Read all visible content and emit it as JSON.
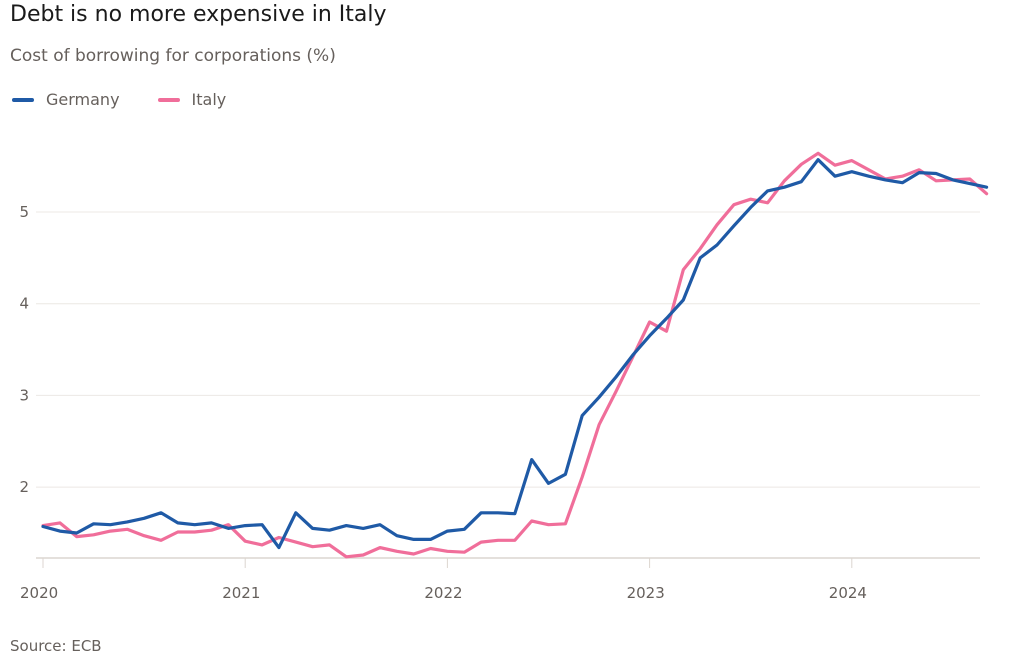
{
  "chart_data": {
    "type": "line",
    "title": "Debt is no more expensive in Italy",
    "subtitle": "Cost of borrowing for corporations (%)",
    "source": "Source: ECB",
    "xlabel": "",
    "ylabel": "",
    "x_start": "2020-01",
    "x_frequency": "monthly",
    "x_ticks": [
      "2020",
      "2021",
      "2022",
      "2023",
      "2024"
    ],
    "y_ticks": [
      "2",
      "3",
      "4",
      "5"
    ],
    "y_tick_values": [
      2,
      3,
      4,
      5
    ],
    "ylim": [
      1.22,
      5.8
    ],
    "xlim_months": [
      0,
      55
    ],
    "grid": true,
    "legend_position": "top-left",
    "series": [
      {
        "name": "Germany",
        "color": "#1f5aa6",
        "values": [
          1.57,
          1.52,
          1.5,
          1.6,
          1.59,
          1.62,
          1.66,
          1.72,
          1.61,
          1.59,
          1.61,
          1.55,
          1.58,
          1.59,
          1.34,
          1.72,
          1.55,
          1.53,
          1.58,
          1.55,
          1.59,
          1.47,
          1.43,
          1.43,
          1.52,
          1.54,
          1.72,
          1.72,
          1.71,
          2.3,
          2.04,
          2.14,
          2.78,
          2.98,
          3.2,
          3.44,
          3.65,
          3.84,
          4.04,
          4.5,
          4.64,
          4.85,
          5.05,
          5.23,
          5.27,
          5.33,
          5.57,
          5.39,
          5.44,
          5.39,
          5.35,
          5.32,
          5.43,
          5.42,
          5.35,
          5.31,
          5.27
        ]
      },
      {
        "name": "Italy",
        "color": "#f06e9a",
        "values": [
          1.58,
          1.61,
          1.46,
          1.48,
          1.52,
          1.54,
          1.47,
          1.42,
          1.51,
          1.51,
          1.53,
          1.59,
          1.41,
          1.37,
          1.45,
          1.4,
          1.35,
          1.37,
          1.24,
          1.26,
          1.34,
          1.3,
          1.27,
          1.33,
          1.3,
          1.29,
          1.4,
          1.42,
          1.42,
          1.63,
          1.59,
          1.6,
          2.11,
          2.68,
          3.04,
          3.42,
          3.8,
          3.7,
          4.37,
          4.6,
          4.86,
          5.08,
          5.14,
          5.1,
          5.34,
          5.52,
          5.64,
          5.51,
          5.56,
          5.46,
          5.36,
          5.39,
          5.46,
          5.34,
          5.35,
          5.36,
          5.2
        ]
      }
    ]
  }
}
